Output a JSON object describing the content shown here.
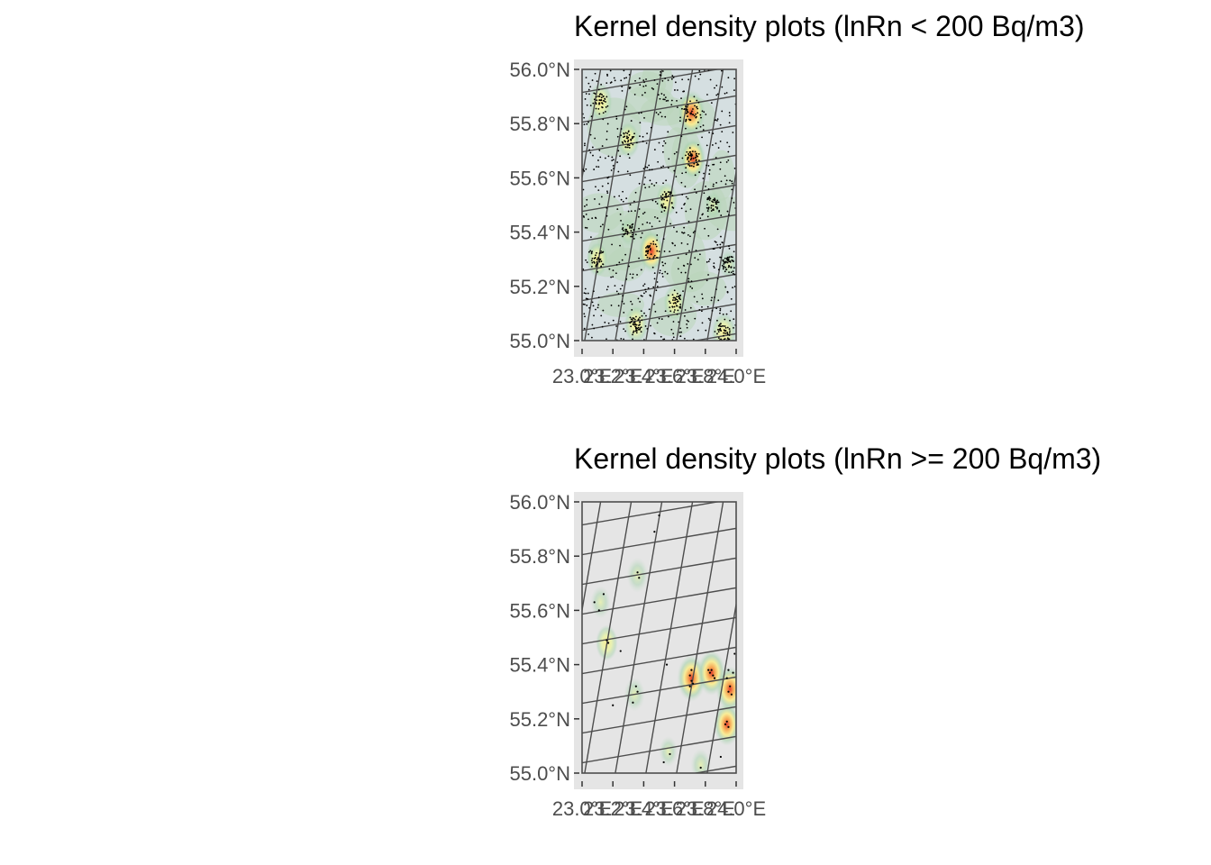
{
  "figure": {
    "background": "#ffffff",
    "panel_background": "#e5e5e5",
    "grid_color": "#4d4d4d",
    "point_color": "#000000",
    "density_palette": [
      "#e5e5e5",
      "#c7dccb",
      "#a7d3ad",
      "#e8f3a6",
      "#fbee90",
      "#f7a64f",
      "#e23a2b"
    ]
  },
  "chart_data": [
    {
      "type": "scatter",
      "subtype": "map-kernel-density",
      "title": "Kernel density plots (lnRn < 200 Bq/m3)",
      "xlabel": "",
      "ylabel": "",
      "xlim": [
        23.0,
        24.0
      ],
      "ylim": [
        55.0,
        56.0
      ],
      "x_ticks": [
        23.0,
        23.2,
        23.4,
        23.6,
        23.8,
        24.0
      ],
      "x_tick_labels": [
        "23.0°E",
        "23.2°E",
        "23.4°E",
        "23.6°E",
        "23.8°E",
        "24.0°E"
      ],
      "y_ticks": [
        55.0,
        55.2,
        55.4,
        55.6,
        55.8,
        56.0
      ],
      "y_tick_labels": [
        "55.0°N",
        "55.2°N",
        "55.4°N",
        "55.6°N",
        "55.8°N",
        "56.0°N"
      ],
      "legend": "none",
      "density_hotspots": [
        {
          "x": 23.71,
          "y": 55.84,
          "level": 1.0
        },
        {
          "x": 23.72,
          "y": 55.67,
          "level": 0.85
        },
        {
          "x": 23.45,
          "y": 55.33,
          "level": 0.9
        },
        {
          "x": 23.92,
          "y": 55.03,
          "level": 0.75
        },
        {
          "x": 23.12,
          "y": 55.88,
          "level": 0.7
        },
        {
          "x": 23.3,
          "y": 55.74,
          "level": 0.6
        },
        {
          "x": 23.35,
          "y": 55.06,
          "level": 0.7
        },
        {
          "x": 23.6,
          "y": 55.14,
          "level": 0.6
        },
        {
          "x": 23.1,
          "y": 55.3,
          "level": 0.55
        },
        {
          "x": 23.3,
          "y": 55.4,
          "level": 0.5
        },
        {
          "x": 23.55,
          "y": 55.52,
          "level": 0.55
        },
        {
          "x": 23.85,
          "y": 55.5,
          "level": 0.5
        },
        {
          "x": 23.95,
          "y": 55.28,
          "level": 0.45
        }
      ],
      "point_count": 1150
    },
    {
      "type": "scatter",
      "subtype": "map-kernel-density",
      "title": "Kernel density plots (lnRn >= 200 Bq/m3)",
      "xlabel": "",
      "ylabel": "",
      "xlim": [
        23.0,
        24.0
      ],
      "ylim": [
        55.0,
        56.0
      ],
      "x_ticks": [
        23.0,
        23.2,
        23.4,
        23.6,
        23.8,
        24.0
      ],
      "x_tick_labels": [
        "23.0°E",
        "23.2°E",
        "23.4°E",
        "23.6°E",
        "23.8°E",
        "24.0°E"
      ],
      "y_ticks": [
        55.0,
        55.2,
        55.4,
        55.6,
        55.8,
        56.0
      ],
      "y_tick_labels": [
        "55.0°N",
        "55.2°N",
        "55.4°N",
        "55.6°N",
        "55.8°N",
        "56.0°N"
      ],
      "legend": "none",
      "points": [
        [
          23.7,
          55.36
        ],
        [
          23.71,
          55.34
        ],
        [
          23.72,
          55.33
        ],
        [
          23.7,
          55.32
        ],
        [
          23.71,
          55.38
        ],
        [
          23.83,
          55.37
        ],
        [
          23.84,
          55.38
        ],
        [
          23.85,
          55.36
        ],
        [
          23.82,
          55.38
        ],
        [
          23.86,
          55.35
        ],
        [
          23.95,
          55.3
        ],
        [
          23.96,
          55.32
        ],
        [
          23.94,
          55.35
        ],
        [
          23.97,
          55.29
        ],
        [
          23.95,
          55.38
        ],
        [
          23.93,
          55.18
        ],
        [
          23.95,
          55.17
        ],
        [
          23.94,
          55.19
        ],
        [
          23.16,
          55.49
        ],
        [
          23.17,
          55.48
        ],
        [
          23.25,
          55.45
        ],
        [
          23.33,
          55.26
        ],
        [
          23.35,
          55.32
        ],
        [
          23.36,
          55.3
        ],
        [
          23.2,
          55.25
        ],
        [
          23.36,
          55.74
        ],
        [
          23.37,
          55.72
        ],
        [
          23.47,
          55.89
        ],
        [
          23.5,
          55.95
        ],
        [
          23.14,
          55.66
        ],
        [
          23.11,
          55.6
        ],
        [
          23.08,
          55.63
        ],
        [
          23.55,
          55.4
        ],
        [
          23.57,
          55.07
        ],
        [
          23.77,
          55.02
        ],
        [
          23.9,
          55.06
        ],
        [
          23.53,
          55.04
        ],
        [
          23.99,
          55.44
        ],
        [
          23.98,
          55.37
        ]
      ],
      "density_hotspots": [
        {
          "x": 23.71,
          "y": 55.35,
          "level": 1.0
        },
        {
          "x": 23.84,
          "y": 55.37,
          "level": 0.95
        },
        {
          "x": 23.96,
          "y": 55.31,
          "level": 0.95
        },
        {
          "x": 23.94,
          "y": 55.18,
          "level": 0.85
        },
        {
          "x": 23.16,
          "y": 55.48,
          "level": 0.55
        },
        {
          "x": 23.36,
          "y": 55.73,
          "level": 0.5
        },
        {
          "x": 23.34,
          "y": 55.29,
          "level": 0.45
        },
        {
          "x": 23.12,
          "y": 55.63,
          "level": 0.4
        },
        {
          "x": 23.77,
          "y": 55.03,
          "level": 0.4
        },
        {
          "x": 23.56,
          "y": 55.08,
          "level": 0.3
        }
      ]
    }
  ]
}
